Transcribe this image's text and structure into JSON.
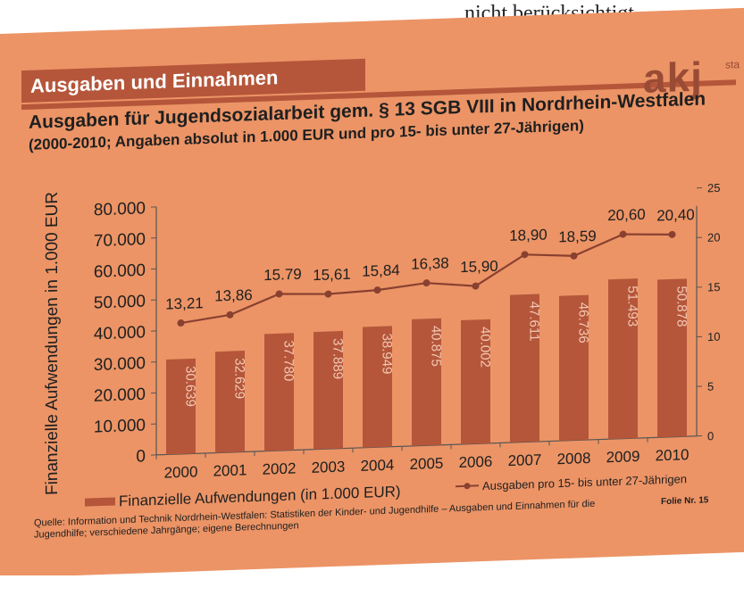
{
  "page": {
    "top_text": "nicht berücksichtigt.",
    "section_title": "Ausgaben und Einnahmen",
    "logo": "akj",
    "logo_sub": "sta",
    "source": "Quelle: Information und Technik Nordrhein-Westfalen: Statistiken der Kinder- und Jugendhilfe – Ausgaben und Einnahmen für die Jugendhilfe; verschiedene Jahrgänge; eigene Berechnungen",
    "folie": "Folie Nr. 15"
  },
  "colors": {
    "slide_bg": "#ec9466",
    "bar": "#b5563a",
    "line": "#8a4030",
    "text": "#1f1f1f"
  },
  "chart_data": {
    "type": "bar",
    "title": "Ausgaben für Jugendsozialarbeit gem. § 13 SGB VIII in Nordrhein-Westfalen",
    "subtitle": "(2000-2010; Angaben absolut in 1.000 EUR und pro 15- bis unter 27-Jährigen)",
    "ylabel": "Finanzielle Aufwendungen in 1.000 EUR",
    "categories": [
      "2000",
      "2001",
      "2002",
      "2003",
      "2004",
      "2005",
      "2006",
      "2007",
      "2008",
      "2009",
      "2010"
    ],
    "ylim": [
      0,
      80000
    ],
    "y_ticks": [
      "0",
      "10.000",
      "20.000",
      "30.000",
      "40.000",
      "50.000",
      "60.000",
      "70.000",
      "80.000"
    ],
    "y2lim": [
      0,
      25
    ],
    "y2_ticks": [
      "0",
      "5",
      "10",
      "15",
      "20",
      "25"
    ],
    "series": [
      {
        "name": "Finanzielle Aufwendungen (in 1.000 EUR)",
        "type": "bar",
        "axis": "left",
        "values": [
          30639,
          32629,
          37780,
          37889,
          38949,
          40875,
          40002,
          47611,
          46736,
          51493,
          50878
        ],
        "labels": [
          "30.639",
          "32.629",
          "37.780",
          "37.889",
          "38.949",
          "40.875",
          "40.002",
          "47.611",
          "46.736",
          "51.493",
          "50.878"
        ]
      },
      {
        "name": "Ausgaben pro 15- bis unter 27-Jährigen",
        "type": "line",
        "axis": "right",
        "values": [
          13.21,
          13.86,
          15.79,
          15.61,
          15.84,
          16.38,
          15.9,
          18.9,
          18.59,
          20.6,
          20.4
        ],
        "labels": [
          "13,21",
          "13,86",
          "15.79",
          "15,61",
          "15,84",
          "16,38",
          "15,90",
          "18,90",
          "18,59",
          "20,60",
          "20,40"
        ]
      }
    ],
    "grid": false,
    "legend": "bottom"
  }
}
